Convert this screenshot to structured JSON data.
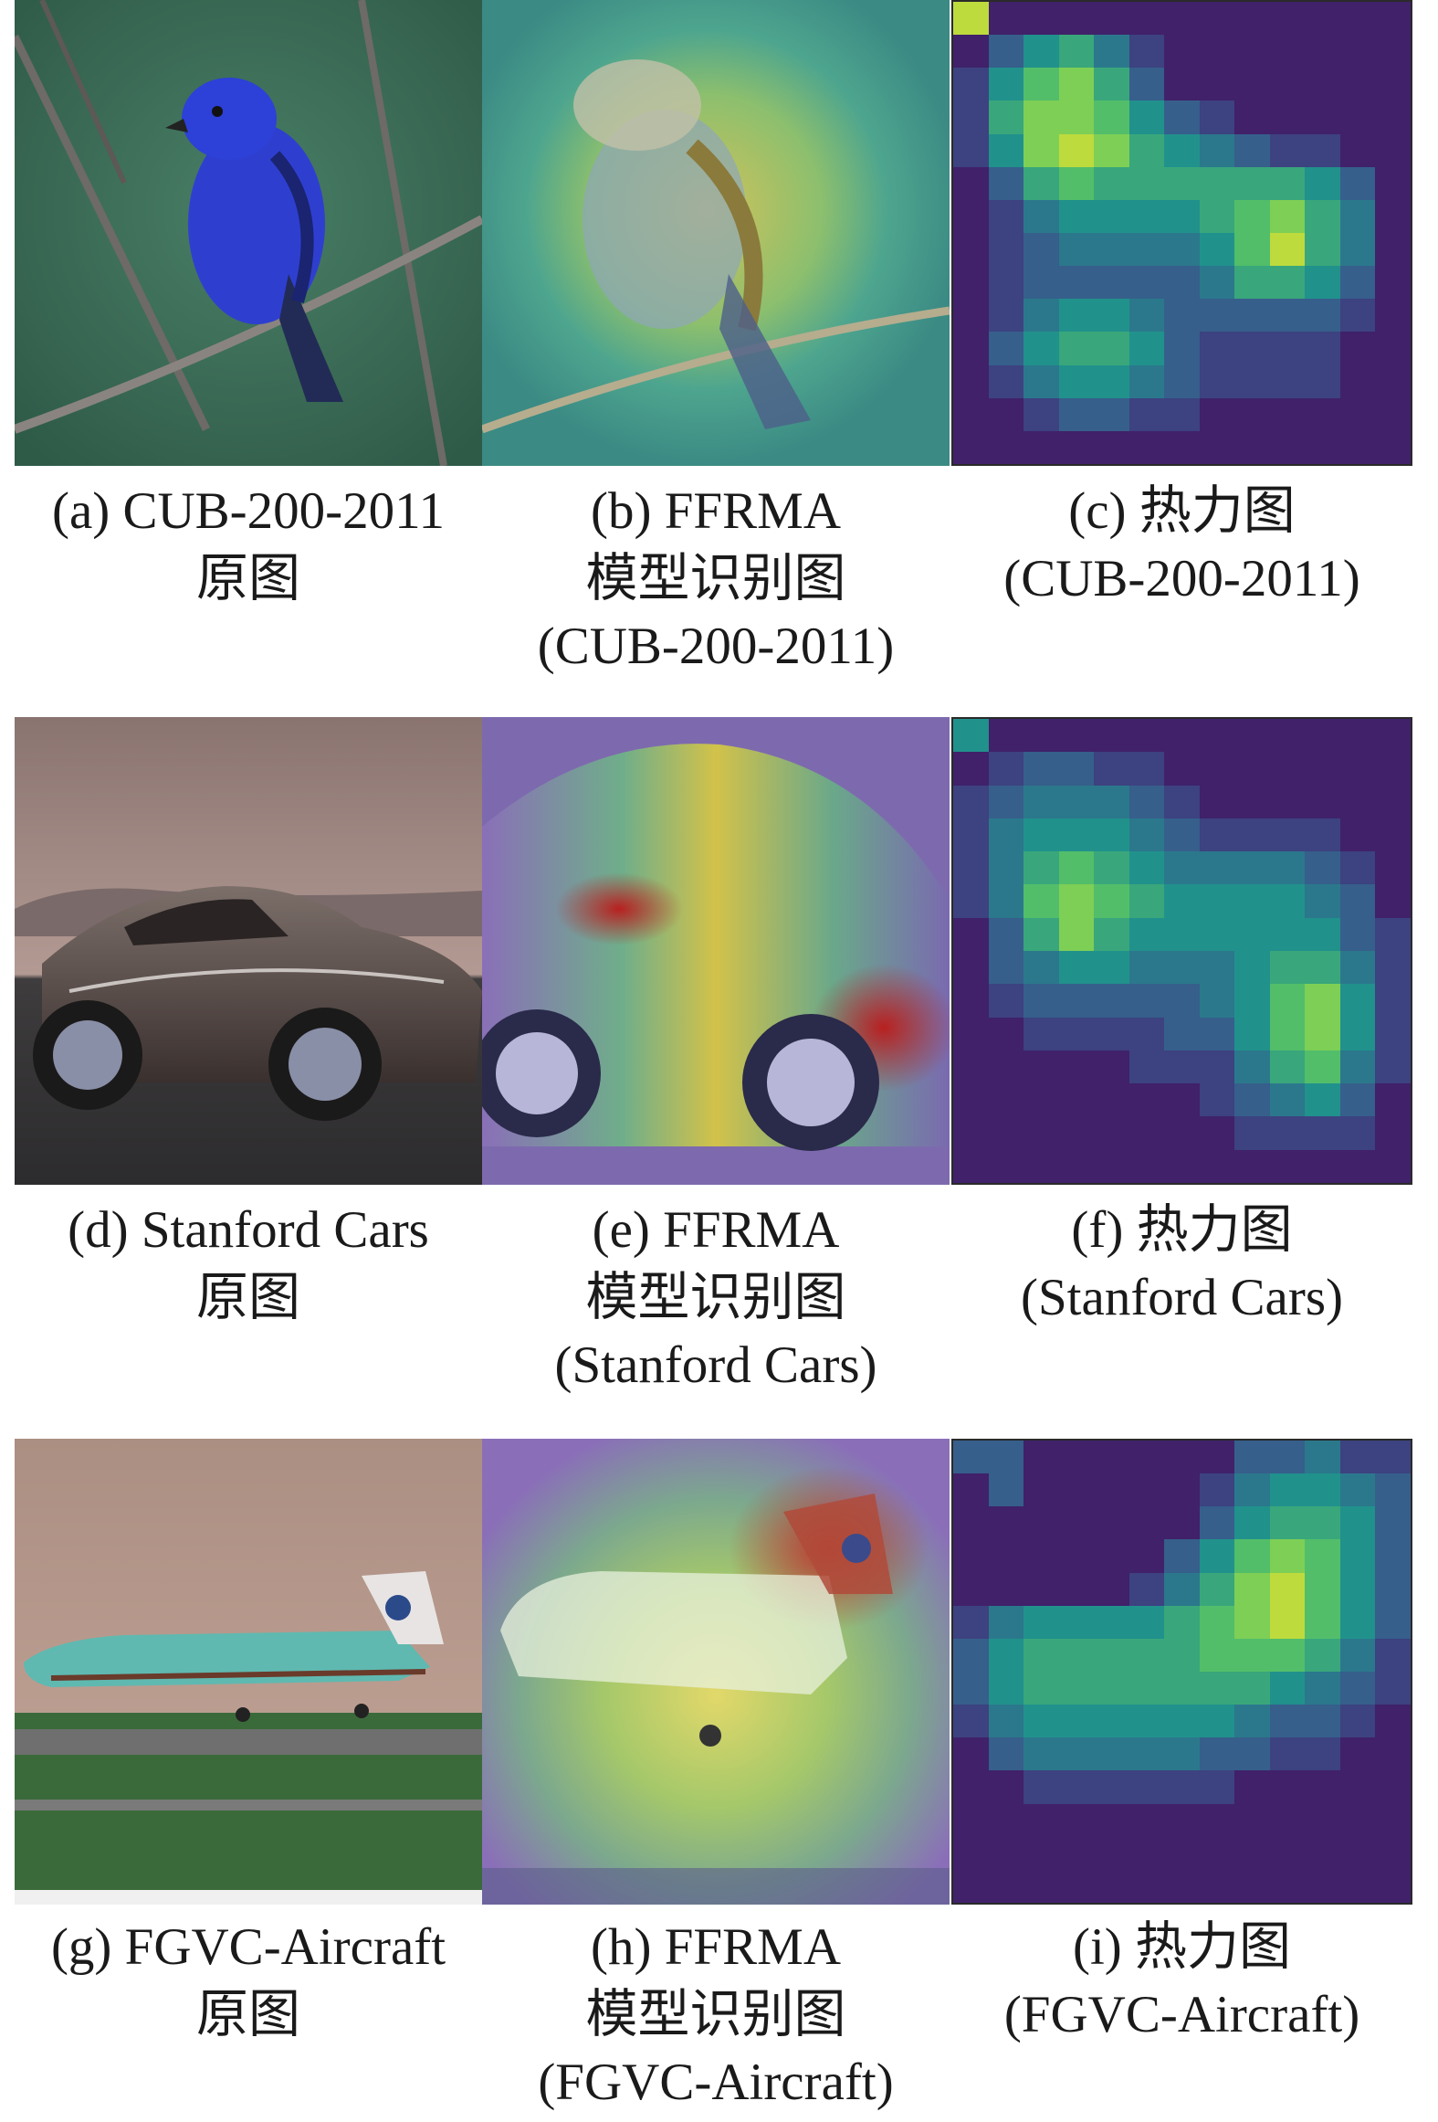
{
  "figure": {
    "rows": [
      {
        "captions": [
          {
            "id": "a",
            "lines": [
              "(a) CUB-200-2011",
              "原图"
            ]
          },
          {
            "id": "b",
            "lines": [
              "(b) FFRMA",
              "模型识别图",
              "(CUB-200-2011)"
            ]
          },
          {
            "id": "c",
            "lines": [
              "(c) 热力图",
              "(CUB-200-2011)"
            ]
          }
        ]
      },
      {
        "captions": [
          {
            "id": "d",
            "lines": [
              "(d) Stanford Cars",
              "原图"
            ]
          },
          {
            "id": "e",
            "lines": [
              "(e) FFRMA",
              "模型识别图",
              "(Stanford Cars)"
            ]
          },
          {
            "id": "f",
            "lines": [
              "(f) 热力图",
              "(Stanford Cars)"
            ]
          }
        ]
      },
      {
        "captions": [
          {
            "id": "g",
            "lines": [
              "(g) FGVC-Aircraft",
              "原图"
            ]
          },
          {
            "id": "h",
            "lines": [
              "(h) FFRMA",
              "模型识别图",
              "(FGVC-Aircraft)"
            ]
          },
          {
            "id": "i",
            "lines": [
              "(i) 热力图",
              "(FGVC-Aircraft)"
            ]
          }
        ]
      }
    ],
    "heatmaps": {
      "c": [
        [
          0.9,
          0.1,
          0.1,
          0.1,
          0.1,
          0.1,
          0.1,
          0.1,
          0.1,
          0.1,
          0.1,
          0.1,
          0.1
        ],
        [
          0.1,
          0.3,
          0.5,
          0.6,
          0.4,
          0.2,
          0.1,
          0.1,
          0.1,
          0.1,
          0.1,
          0.1,
          0.1
        ],
        [
          0.2,
          0.5,
          0.7,
          0.8,
          0.6,
          0.3,
          0.1,
          0.1,
          0.1,
          0.1,
          0.1,
          0.1,
          0.1
        ],
        [
          0.2,
          0.6,
          0.8,
          0.8,
          0.7,
          0.5,
          0.3,
          0.2,
          0.1,
          0.1,
          0.1,
          0.1,
          0.1
        ],
        [
          0.2,
          0.5,
          0.8,
          0.9,
          0.8,
          0.6,
          0.5,
          0.4,
          0.3,
          0.2,
          0.2,
          0.1,
          0.1
        ],
        [
          0.1,
          0.3,
          0.6,
          0.7,
          0.6,
          0.6,
          0.6,
          0.6,
          0.6,
          0.6,
          0.5,
          0.3,
          0.1
        ],
        [
          0.1,
          0.2,
          0.4,
          0.5,
          0.5,
          0.5,
          0.5,
          0.6,
          0.7,
          0.8,
          0.6,
          0.4,
          0.1
        ],
        [
          0.1,
          0.2,
          0.3,
          0.4,
          0.4,
          0.4,
          0.4,
          0.5,
          0.7,
          0.9,
          0.6,
          0.4,
          0.1
        ],
        [
          0.1,
          0.2,
          0.3,
          0.3,
          0.3,
          0.3,
          0.3,
          0.4,
          0.6,
          0.6,
          0.5,
          0.3,
          0.1
        ],
        [
          0.1,
          0.2,
          0.4,
          0.5,
          0.5,
          0.4,
          0.3,
          0.3,
          0.3,
          0.3,
          0.3,
          0.2,
          0.1
        ],
        [
          0.1,
          0.3,
          0.5,
          0.6,
          0.6,
          0.5,
          0.3,
          0.2,
          0.2,
          0.2,
          0.2,
          0.1,
          0.1
        ],
        [
          0.1,
          0.2,
          0.4,
          0.5,
          0.5,
          0.4,
          0.3,
          0.2,
          0.2,
          0.2,
          0.2,
          0.1,
          0.1
        ],
        [
          0.1,
          0.1,
          0.2,
          0.3,
          0.3,
          0.2,
          0.2,
          0.1,
          0.1,
          0.1,
          0.1,
          0.1,
          0.1
        ],
        [
          0.1,
          0.1,
          0.1,
          0.1,
          0.1,
          0.1,
          0.1,
          0.1,
          0.1,
          0.1,
          0.1,
          0.1,
          0.1
        ]
      ],
      "f": [
        [
          0.5,
          0.1,
          0.1,
          0.1,
          0.1,
          0.1,
          0.1,
          0.1,
          0.1,
          0.1,
          0.1,
          0.1,
          0.1
        ],
        [
          0.1,
          0.2,
          0.3,
          0.3,
          0.2,
          0.2,
          0.1,
          0.1,
          0.1,
          0.1,
          0.1,
          0.1,
          0.1
        ],
        [
          0.2,
          0.3,
          0.4,
          0.4,
          0.4,
          0.3,
          0.2,
          0.1,
          0.1,
          0.1,
          0.1,
          0.1,
          0.1
        ],
        [
          0.2,
          0.4,
          0.5,
          0.5,
          0.5,
          0.4,
          0.3,
          0.2,
          0.2,
          0.2,
          0.2,
          0.1,
          0.1
        ],
        [
          0.2,
          0.4,
          0.6,
          0.7,
          0.6,
          0.5,
          0.4,
          0.4,
          0.4,
          0.4,
          0.3,
          0.2,
          0.1
        ],
        [
          0.2,
          0.4,
          0.7,
          0.8,
          0.7,
          0.6,
          0.5,
          0.5,
          0.5,
          0.5,
          0.4,
          0.3,
          0.1
        ],
        [
          0.1,
          0.3,
          0.6,
          0.8,
          0.6,
          0.5,
          0.5,
          0.5,
          0.5,
          0.5,
          0.5,
          0.3,
          0.2
        ],
        [
          0.1,
          0.3,
          0.4,
          0.5,
          0.5,
          0.4,
          0.4,
          0.4,
          0.5,
          0.6,
          0.6,
          0.4,
          0.2
        ],
        [
          0.1,
          0.2,
          0.3,
          0.3,
          0.3,
          0.3,
          0.3,
          0.4,
          0.5,
          0.7,
          0.8,
          0.5,
          0.2
        ],
        [
          0.1,
          0.1,
          0.2,
          0.2,
          0.2,
          0.2,
          0.3,
          0.3,
          0.5,
          0.7,
          0.8,
          0.5,
          0.2
        ],
        [
          0.1,
          0.1,
          0.1,
          0.1,
          0.1,
          0.2,
          0.2,
          0.2,
          0.4,
          0.6,
          0.7,
          0.4,
          0.2
        ],
        [
          0.1,
          0.1,
          0.1,
          0.1,
          0.1,
          0.1,
          0.1,
          0.2,
          0.3,
          0.4,
          0.5,
          0.3,
          0.1
        ],
        [
          0.1,
          0.1,
          0.1,
          0.1,
          0.1,
          0.1,
          0.1,
          0.1,
          0.2,
          0.2,
          0.2,
          0.2,
          0.1
        ],
        [
          0.1,
          0.1,
          0.1,
          0.1,
          0.1,
          0.1,
          0.1,
          0.1,
          0.1,
          0.1,
          0.1,
          0.1,
          0.1
        ]
      ],
      "i": [
        [
          0.3,
          0.3,
          0.1,
          0.1,
          0.1,
          0.1,
          0.1,
          0.1,
          0.3,
          0.3,
          0.4,
          0.2,
          0.2
        ],
        [
          0.1,
          0.3,
          0.1,
          0.1,
          0.1,
          0.1,
          0.1,
          0.2,
          0.4,
          0.5,
          0.5,
          0.4,
          0.3
        ],
        [
          0.1,
          0.1,
          0.1,
          0.1,
          0.1,
          0.1,
          0.1,
          0.3,
          0.5,
          0.6,
          0.6,
          0.5,
          0.3
        ],
        [
          0.1,
          0.1,
          0.1,
          0.1,
          0.1,
          0.1,
          0.3,
          0.5,
          0.7,
          0.8,
          0.7,
          0.5,
          0.3
        ],
        [
          0.1,
          0.1,
          0.1,
          0.1,
          0.1,
          0.2,
          0.4,
          0.6,
          0.8,
          0.9,
          0.7,
          0.5,
          0.3
        ],
        [
          0.2,
          0.4,
          0.5,
          0.5,
          0.5,
          0.5,
          0.6,
          0.7,
          0.8,
          0.9,
          0.7,
          0.5,
          0.3
        ],
        [
          0.3,
          0.5,
          0.6,
          0.6,
          0.6,
          0.6,
          0.6,
          0.7,
          0.7,
          0.7,
          0.6,
          0.4,
          0.2
        ],
        [
          0.3,
          0.5,
          0.6,
          0.6,
          0.6,
          0.6,
          0.6,
          0.6,
          0.6,
          0.5,
          0.4,
          0.3,
          0.2
        ],
        [
          0.2,
          0.4,
          0.5,
          0.5,
          0.5,
          0.5,
          0.5,
          0.5,
          0.4,
          0.3,
          0.3,
          0.2,
          0.1
        ],
        [
          0.1,
          0.3,
          0.4,
          0.4,
          0.4,
          0.4,
          0.4,
          0.3,
          0.3,
          0.2,
          0.2,
          0.1,
          0.1
        ],
        [
          0.1,
          0.1,
          0.2,
          0.2,
          0.2,
          0.2,
          0.2,
          0.2,
          0.1,
          0.1,
          0.1,
          0.1,
          0.1
        ],
        [
          0.1,
          0.1,
          0.1,
          0.1,
          0.1,
          0.1,
          0.1,
          0.1,
          0.1,
          0.1,
          0.1,
          0.1,
          0.1
        ],
        [
          0.1,
          0.1,
          0.1,
          0.1,
          0.1,
          0.1,
          0.1,
          0.1,
          0.1,
          0.1,
          0.1,
          0.1,
          0.1
        ],
        [
          0.1,
          0.1,
          0.1,
          0.1,
          0.1,
          0.1,
          0.1,
          0.1,
          0.1,
          0.1,
          0.1,
          0.1,
          0.1
        ]
      ]
    }
  }
}
